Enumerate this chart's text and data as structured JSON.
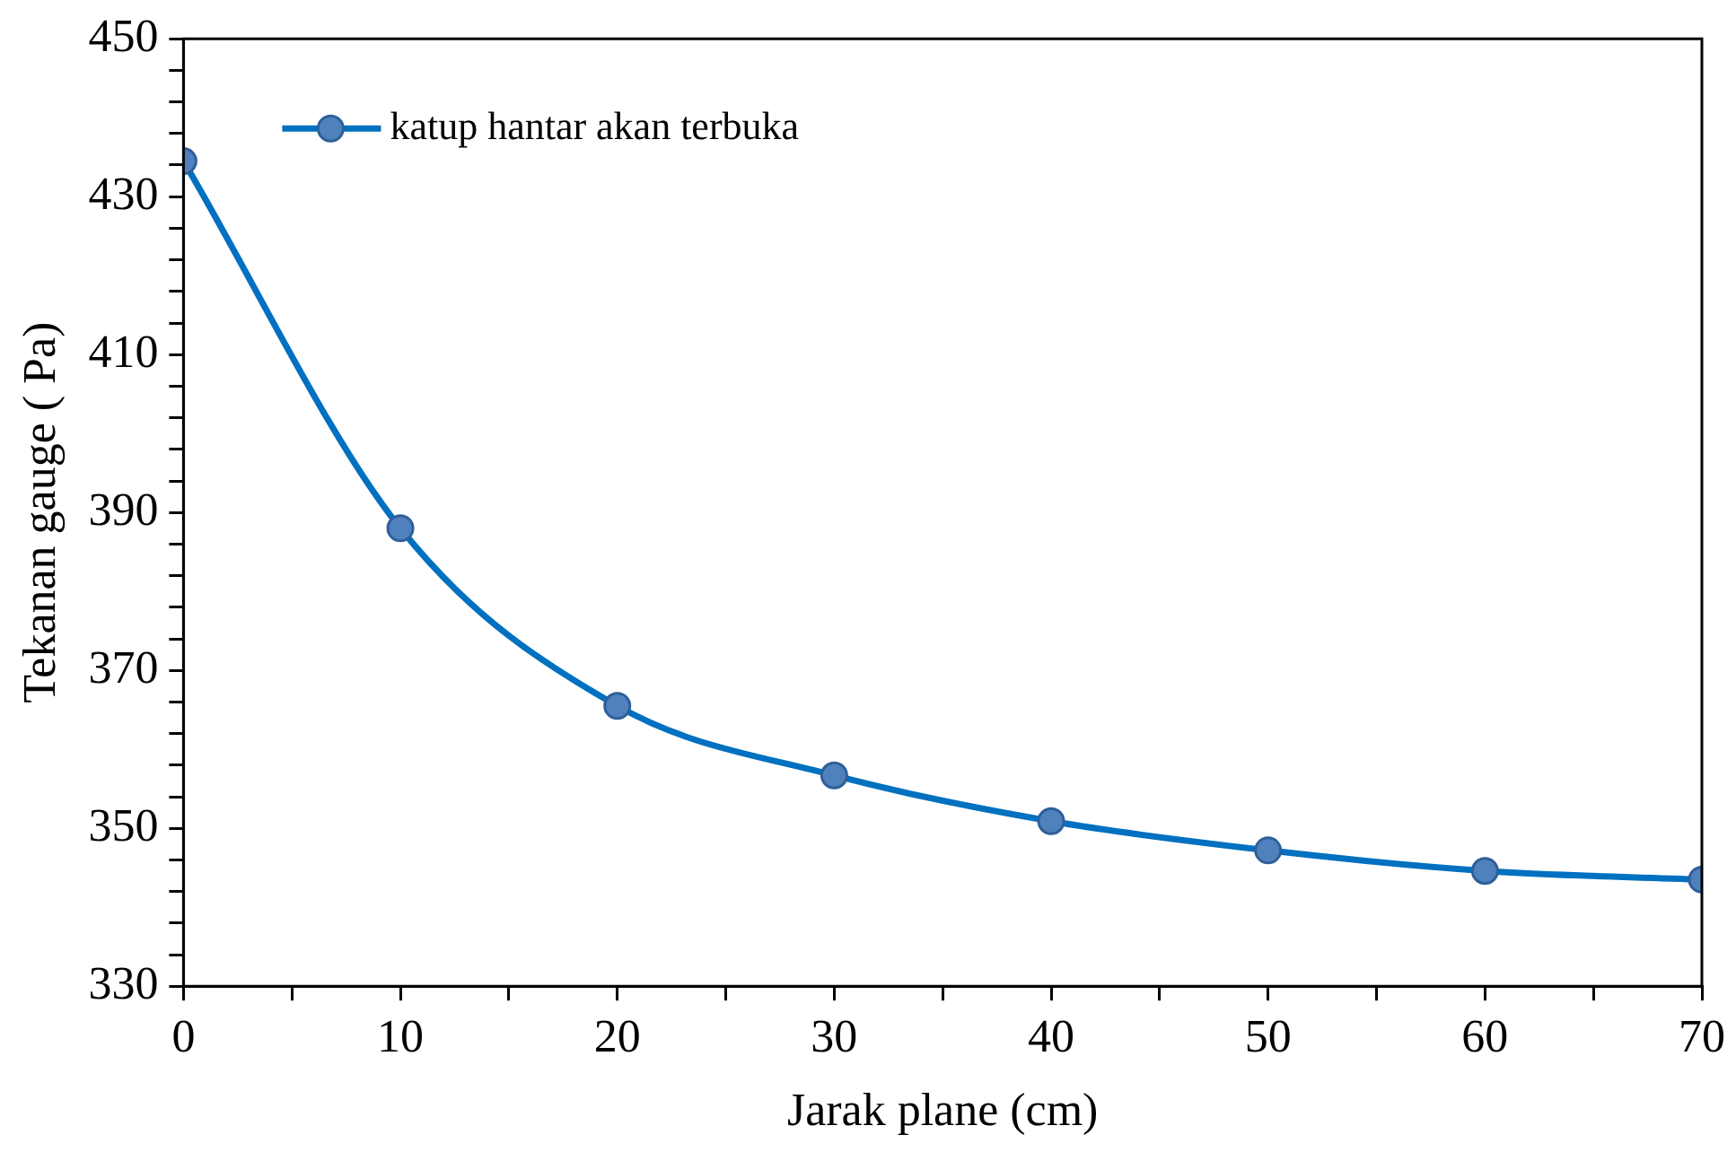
{
  "chart_data": {
    "type": "line",
    "xlabel": "Jarak plane (cm)",
    "ylabel": "Tekanan gauge ( Pa)",
    "x": [
      0,
      10,
      20,
      30,
      40,
      50,
      60,
      70
    ],
    "series": [
      {
        "name": "katup hantar akan terbuka",
        "color": "#0070c0",
        "values": [
          434.5,
          388,
          365.5,
          356.7,
          350.9,
          347.2,
          344.6,
          343.5
        ]
      }
    ],
    "xlim": [
      0,
      70
    ],
    "xticks": [
      0,
      {
        "value": 5,
        "label": null
      },
      10,
      {
        "value": 15,
        "label": null
      },
      20,
      {
        "value": 25,
        "label": null
      },
      30,
      {
        "value": 35,
        "label": null
      },
      40,
      {
        "value": 45,
        "label": null
      },
      50,
      {
        "value": 55,
        "label": null
      },
      60,
      {
        "value": 65,
        "label": null
      },
      70
    ],
    "ylim": [
      330,
      450
    ],
    "yticks": [
      330,
      {
        "value": 334,
        "label": null
      },
      {
        "value": 338,
        "label": null
      },
      {
        "value": 342,
        "label": null
      },
      {
        "value": 346,
        "label": null
      },
      350,
      {
        "value": 354,
        "label": null
      },
      {
        "value": 358,
        "label": null
      },
      {
        "value": 362,
        "label": null
      },
      {
        "value": 366,
        "label": null
      },
      370,
      {
        "value": 374,
        "label": null
      },
      {
        "value": 378,
        "label": null
      },
      {
        "value": 382,
        "label": null
      },
      {
        "value": 386,
        "label": null
      },
      390,
      {
        "value": 394,
        "label": null
      },
      {
        "value": 398,
        "label": null
      },
      {
        "value": 402,
        "label": null
      },
      {
        "value": 406,
        "label": null
      },
      410,
      {
        "value": 414,
        "label": null
      },
      {
        "value": 418,
        "label": null
      },
      {
        "value": 422,
        "label": null
      },
      {
        "value": 426,
        "label": null
      },
      430,
      {
        "value": 434,
        "label": null
      },
      {
        "value": 438,
        "label": null
      },
      {
        "value": 442,
        "label": null
      },
      {
        "value": 446,
        "label": null
      },
      450
    ],
    "grid": false,
    "legend": "top left",
    "marker": "circle",
    "line_style": "solid"
  }
}
